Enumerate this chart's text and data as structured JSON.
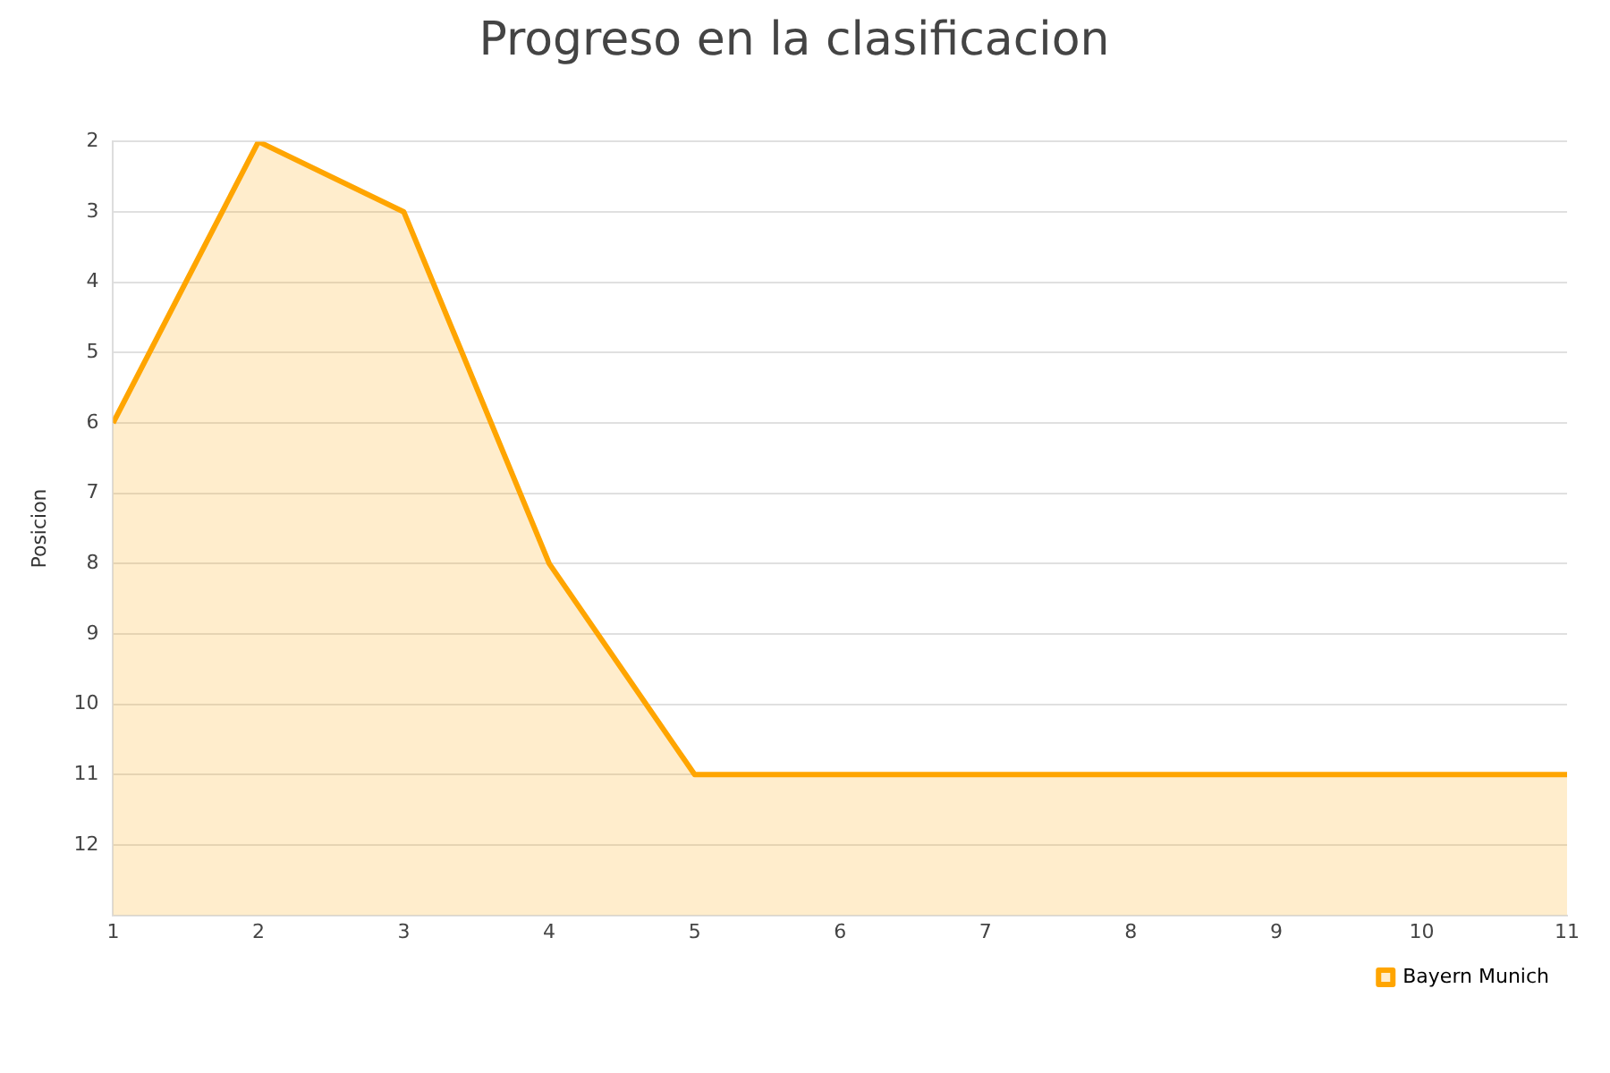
{
  "chart_data": {
    "type": "line",
    "title": "Progreso en la clasificacion",
    "ylabel": "Posicion",
    "x": [
      1,
      2,
      3,
      4,
      5,
      6,
      7,
      8,
      9,
      10,
      11
    ],
    "series": [
      {
        "name": "Bayern Munich",
        "color": "#ffa500",
        "values": [
          6,
          2,
          3,
          8,
          11,
          11,
          11,
          11,
          11,
          11,
          11
        ],
        "lower": [
          13,
          13,
          13,
          13,
          13,
          13,
          13,
          13,
          13,
          13,
          13
        ],
        "upper": [
          6,
          2,
          3,
          8,
          11,
          11,
          11,
          11,
          11,
          11,
          11
        ]
      }
    ],
    "xlim": [
      1,
      11
    ],
    "xticks": [
      1,
      2,
      3,
      4,
      5,
      6,
      7,
      8,
      9,
      10,
      11
    ],
    "ylim": [
      13,
      2
    ],
    "yticks": [
      2,
      3,
      4,
      5,
      6,
      7,
      8,
      9,
      10,
      11,
      12
    ],
    "grid": "y",
    "legend": "bottom right",
    "marker": "none",
    "line_style": "solid"
  }
}
